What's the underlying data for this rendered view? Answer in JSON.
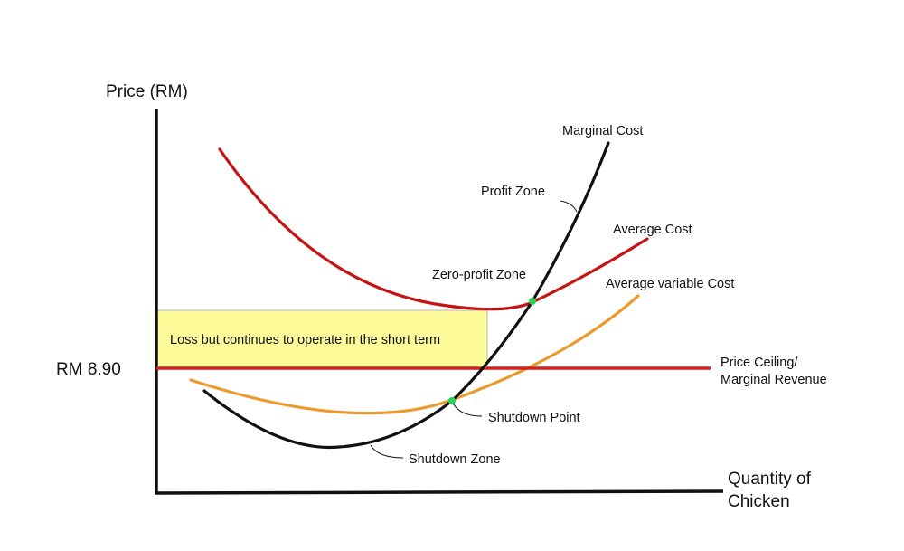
{
  "axes": {
    "y_label": "Price (RM)",
    "x_label_line1": "Quantity of",
    "x_label_line2": "Chicken",
    "price_tick": "RM 8.90"
  },
  "curves": {
    "marginal_cost": "Marginal Cost",
    "average_cost": "Average Cost",
    "average_variable_cost": "Average variable Cost",
    "price_line_line1": "Price Ceiling/",
    "price_line_line2": "Marginal Revenue"
  },
  "zones": {
    "profit": "Profit Zone",
    "zero_profit": "Zero-profit Zone",
    "shutdown_point": "Shutdown Point",
    "shutdown_zone": "Shutdown Zone"
  },
  "loss_box": {
    "text": "Loss but continues to operate in the short term"
  },
  "colors": {
    "axis": "#111111",
    "marginal_cost": "#111111",
    "average_cost": "#c41414",
    "average_variable_cost": "#eb9b2e",
    "price_line": "#d81e1e",
    "loss_box_fill": "#fdfa9a",
    "intersection_point": "#2ed35a"
  }
}
